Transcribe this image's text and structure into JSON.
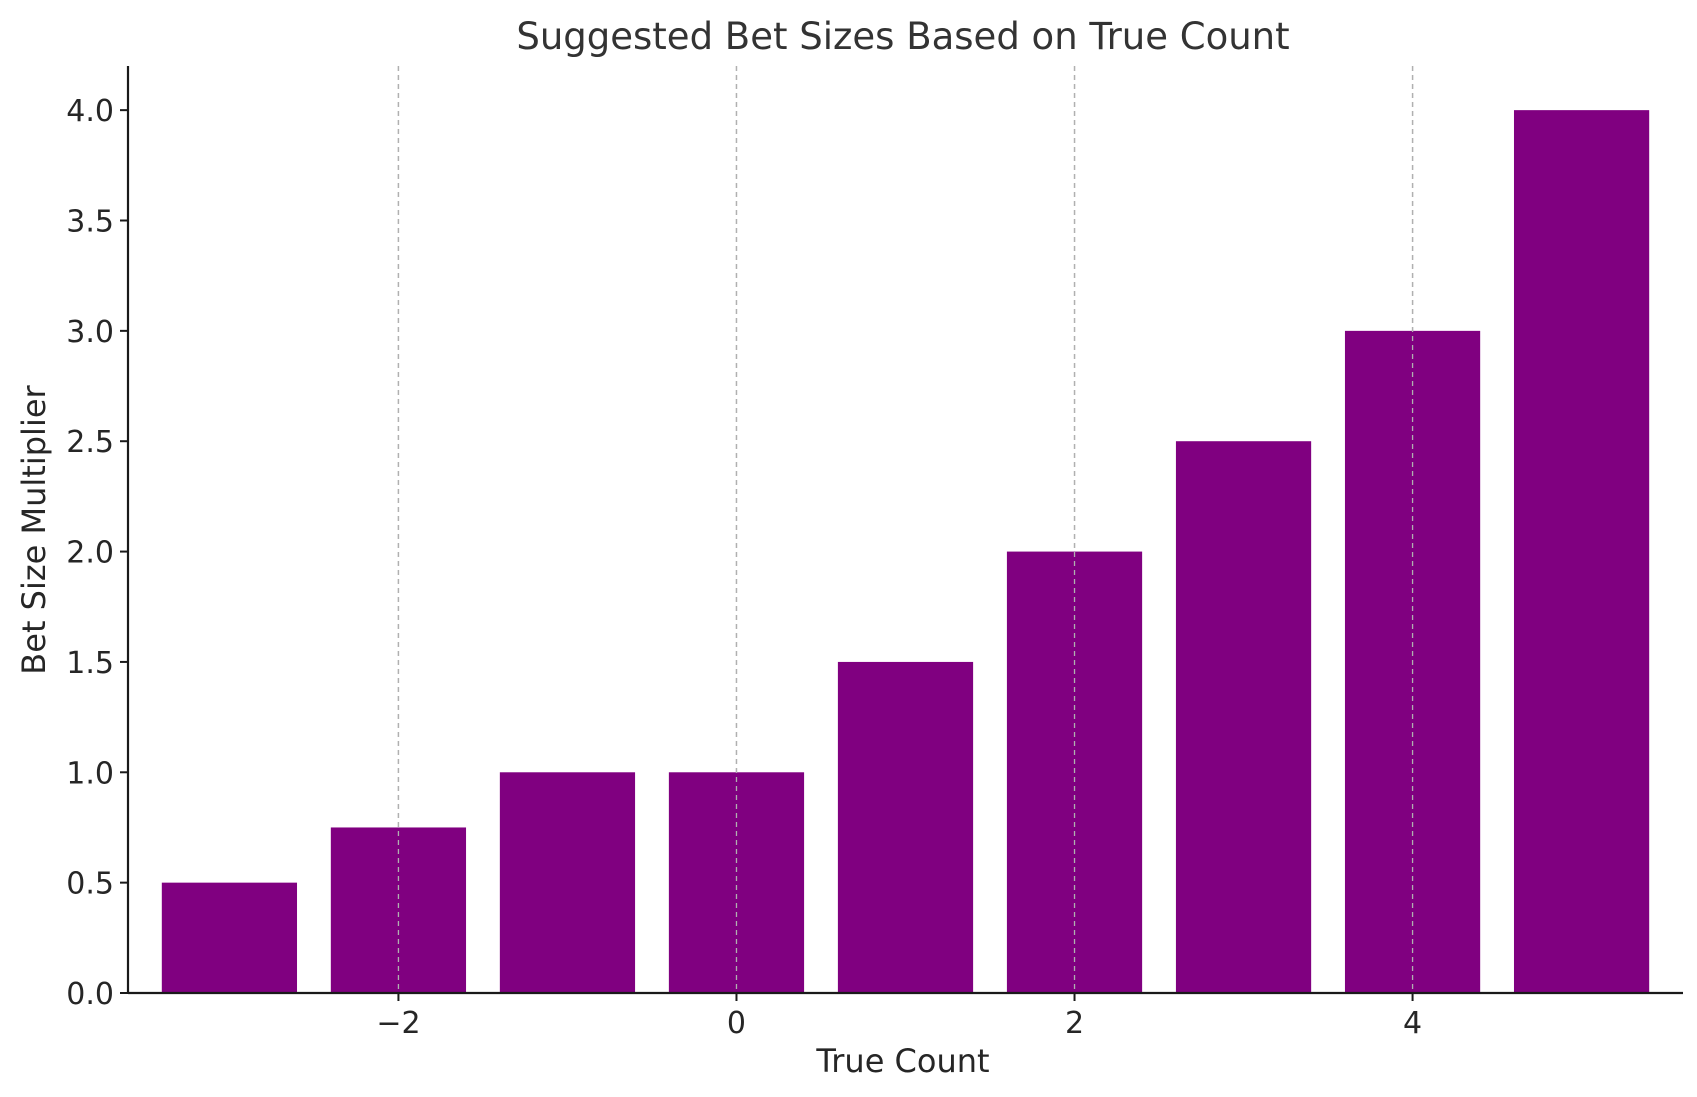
{
  "chart_data": {
    "type": "bar",
    "title": "Suggested Bet Sizes Based on True Count",
    "xlabel": "True Count",
    "ylabel": "Bet Size Multiplier",
    "x": [
      -3,
      -2,
      -1,
      0,
      1,
      2,
      3,
      4,
      5
    ],
    "values": [
      0.5,
      0.75,
      1.0,
      1.0,
      1.5,
      2.0,
      2.5,
      3.0,
      4.0
    ],
    "bar_width": 0.8,
    "xlim": [
      -3.6,
      5.6
    ],
    "ylim": [
      0,
      4.2
    ],
    "x_ticks": [
      -2,
      0,
      2,
      4
    ],
    "x_tick_labels": [
      "−2",
      "0",
      "2",
      "4"
    ],
    "y_ticks": [
      0,
      0.5,
      1.0,
      1.5,
      2.0,
      2.5,
      3.0,
      3.5,
      4.0
    ],
    "y_tick_labels": [
      "0.0",
      "0.5",
      "1.0",
      "1.5",
      "2.0",
      "2.5",
      "3.0",
      "3.5",
      "4.0"
    ],
    "grid": "x-axis dashed",
    "bar_color": "#800080",
    "grid_color": "#b0b0b0"
  }
}
